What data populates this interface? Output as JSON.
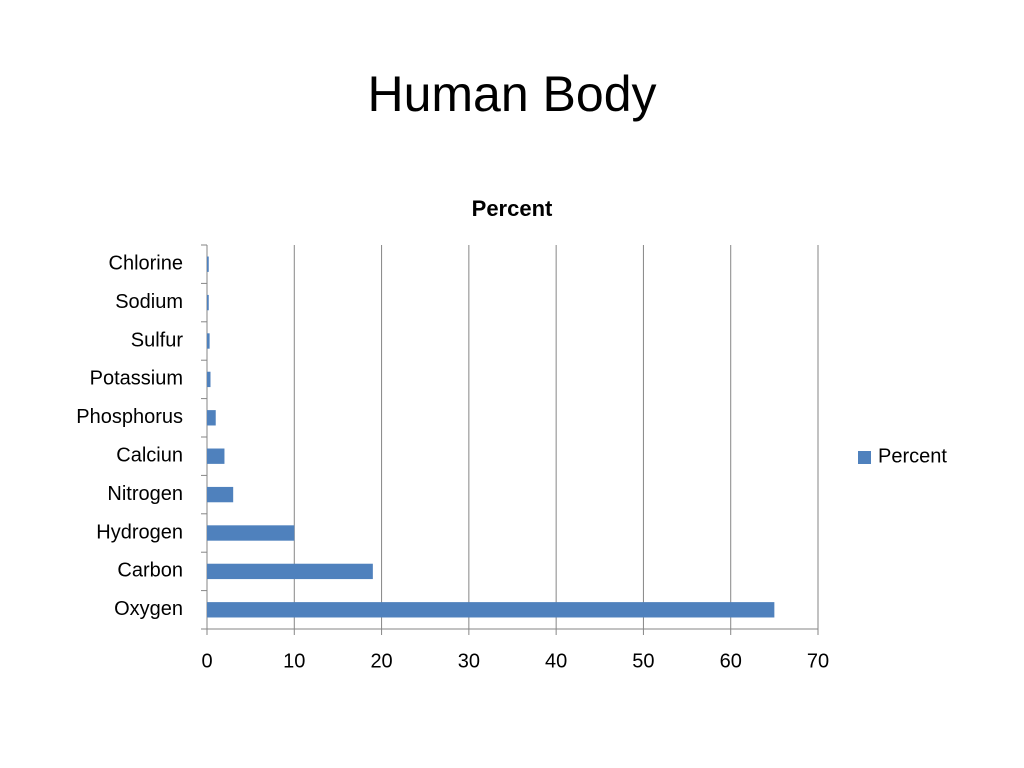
{
  "slide_title": "Human Body",
  "chart_data": {
    "type": "bar",
    "orientation": "horizontal",
    "title": "Percent",
    "categories": [
      "Oxygen",
      "Carbon",
      "Hydrogen",
      "Nitrogen",
      "Calciun",
      "Phosphorus",
      "Potassium",
      "Sulfur",
      "Sodium",
      "Chlorine"
    ],
    "series": [
      {
        "name": "Percent",
        "color": "#4f81bd",
        "values": [
          65,
          19,
          10,
          3,
          2,
          1,
          0.4,
          0.3,
          0.2,
          0.2
        ]
      }
    ],
    "xlim": [
      0,
      70
    ],
    "xticks": [
      0,
      10,
      20,
      30,
      40,
      50,
      60,
      70
    ],
    "grid": true,
    "legend": "right"
  }
}
